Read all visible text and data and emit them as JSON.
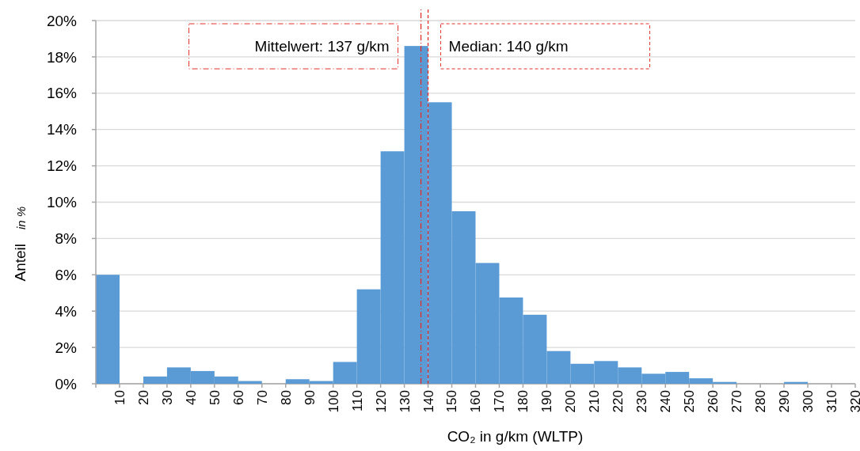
{
  "chart_data": {
    "type": "histogram",
    "xlabel": "CO₂ in g/km (WLTP)",
    "ylabel": "Anteil in %",
    "color": "#5b9bd5",
    "bins": [
      0,
      10,
      20,
      30,
      40,
      50,
      60,
      70,
      80,
      90,
      100,
      110,
      120,
      130,
      140,
      150,
      160,
      170,
      180,
      190,
      200,
      210,
      220,
      230,
      240,
      250,
      260,
      270,
      280,
      290,
      300,
      310,
      320
    ],
    "values": [
      6.0,
      0,
      0.4,
      0.9,
      0.7,
      0.4,
      0.15,
      0,
      0.25,
      0.15,
      1.2,
      5.2,
      12.8,
      18.6,
      15.5,
      9.5,
      6.65,
      4.75,
      3.8,
      1.8,
      1.1,
      1.25,
      0.9,
      0.55,
      0.65,
      0.3,
      0.1,
      0,
      0,
      0.1,
      0,
      0
    ],
    "xlim": [
      0,
      320
    ],
    "xticks": [
      {
        "value": 0,
        "label": null
      },
      10,
      20,
      30,
      40,
      50,
      60,
      70,
      80,
      90,
      100,
      110,
      120,
      130,
      140,
      150,
      160,
      170,
      180,
      190,
      200,
      210,
      220,
      230,
      240,
      250,
      260,
      270,
      280,
      290,
      300,
      310,
      320
    ],
    "ylim": [
      0,
      20
    ],
    "yticks": [
      {
        "value": 0,
        "label": "0%"
      },
      {
        "value": 2,
        "label": "2%"
      },
      {
        "value": 4,
        "label": "4%"
      },
      {
        "value": 6,
        "label": "6%"
      },
      {
        "value": 8,
        "label": "8%"
      },
      {
        "value": 10,
        "label": "10%"
      },
      {
        "value": 12,
        "label": "12%"
      },
      {
        "value": 14,
        "label": "14%"
      },
      {
        "value": 16,
        "label": "16%"
      },
      {
        "value": 18,
        "label": "18%"
      },
      {
        "value": 20,
        "label": "20%"
      }
    ],
    "grid": "y",
    "ref_lines": [
      {
        "axis": "x",
        "value": 137,
        "label": "Mittelwert: 137 g/km",
        "color": "#e0302a",
        "line_style": "dashdot"
      },
      {
        "axis": "x",
        "value": 140,
        "label": "Median: 140 g/km",
        "color": "#e0302a",
        "line_style": "dashed"
      }
    ]
  }
}
